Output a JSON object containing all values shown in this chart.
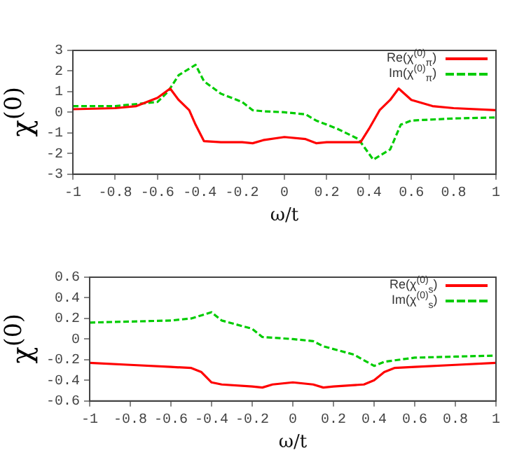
{
  "chart_data": [
    {
      "type": "line",
      "xlabel": "ω/t",
      "ylabel": "χ$^{(0)}$",
      "legend": "top right",
      "marker": "none",
      "grid": false,
      "xlim": [
        -1,
        1
      ],
      "xticks": [
        -1,
        -0.8,
        -0.6,
        -0.4,
        -0.2,
        0,
        0.2,
        0.4,
        0.6,
        0.8,
        1
      ],
      "ylim": [
        -3,
        3
      ],
      "yticks": [
        -3,
        -2,
        -1,
        0,
        1,
        2,
        3
      ],
      "series": [
        {
          "name": "Re(χ$^{(0)}$$_{π}$)",
          "color": "#ff0000",
          "line_style": "solid",
          "x": [
            -1,
            -0.8,
            -0.7,
            -0.6,
            -0.54,
            -0.5,
            -0.45,
            -0.42,
            -0.38,
            -0.3,
            -0.2,
            -0.15,
            -0.1,
            0,
            0.1,
            0.15,
            0.2,
            0.3,
            0.36,
            0.4,
            0.45,
            0.5,
            0.54,
            0.6,
            0.7,
            0.8,
            1
          ],
          "values": [
            0.15,
            0.2,
            0.3,
            0.7,
            1.15,
            0.6,
            0.1,
            -0.6,
            -1.4,
            -1.45,
            -1.45,
            -1.5,
            -1.35,
            -1.2,
            -1.3,
            -1.5,
            -1.45,
            -1.45,
            -1.45,
            -0.8,
            0.1,
            0.6,
            1.15,
            0.6,
            0.3,
            0.2,
            0.1
          ]
        },
        {
          "name": "Im(χ$^{(0)}$$_{π}$)",
          "color": "#00cc00",
          "line_style": "dashed",
          "x": [
            -1,
            -0.8,
            -0.6,
            -0.55,
            -0.5,
            -0.42,
            -0.38,
            -0.3,
            -0.2,
            -0.15,
            -0.1,
            0,
            0.1,
            0.15,
            0.25,
            0.35,
            0.42,
            0.5,
            0.55,
            0.6,
            0.8,
            1
          ],
          "values": [
            0.3,
            0.3,
            0.5,
            1.0,
            1.8,
            2.3,
            1.5,
            0.9,
            0.5,
            0.1,
            0.05,
            0,
            -0.1,
            -0.4,
            -0.8,
            -1.3,
            -2.3,
            -1.8,
            -0.6,
            -0.4,
            -0.3,
            -0.25
          ]
        }
      ]
    },
    {
      "type": "line",
      "xlabel": "ω/t",
      "ylabel": "χ$^{(0)}$",
      "legend": "top right",
      "marker": "none",
      "grid": false,
      "xlim": [
        -1,
        1
      ],
      "xticks": [
        -1,
        -0.8,
        -0.6,
        -0.4,
        -0.2,
        0,
        0.2,
        0.4,
        0.6,
        0.8,
        1
      ],
      "ylim": [
        -0.6,
        0.6
      ],
      "yticks": [
        -0.6,
        -0.4,
        -0.2,
        0,
        0.2,
        0.4,
        0.6
      ],
      "series": [
        {
          "name": "Re(χ$^{(0)}$$_{s}$)",
          "color": "#ff0000",
          "line_style": "solid",
          "x": [
            -1,
            -0.8,
            -0.6,
            -0.5,
            -0.45,
            -0.4,
            -0.35,
            -0.2,
            -0.15,
            -0.1,
            0,
            0.1,
            0.15,
            0.2,
            0.35,
            0.4,
            0.45,
            0.5,
            0.6,
            0.8,
            1
          ],
          "values": [
            -0.23,
            -0.25,
            -0.27,
            -0.28,
            -0.32,
            -0.42,
            -0.44,
            -0.46,
            -0.47,
            -0.44,
            -0.42,
            -0.44,
            -0.47,
            -0.46,
            -0.44,
            -0.4,
            -0.32,
            -0.28,
            -0.27,
            -0.25,
            -0.23
          ]
        },
        {
          "name": "Im(χ$^{(0)}$$_{s}$)",
          "color": "#00cc00",
          "line_style": "dashed",
          "x": [
            -1,
            -0.8,
            -0.6,
            -0.5,
            -0.4,
            -0.35,
            -0.2,
            -0.15,
            0,
            0.1,
            0.15,
            0.3,
            0.4,
            0.45,
            0.6,
            0.8,
            1
          ],
          "values": [
            0.16,
            0.17,
            0.18,
            0.2,
            0.26,
            0.18,
            0.1,
            0.02,
            0,
            -0.02,
            -0.07,
            -0.15,
            -0.26,
            -0.22,
            -0.18,
            -0.17,
            -0.16
          ]
        }
      ]
    }
  ]
}
